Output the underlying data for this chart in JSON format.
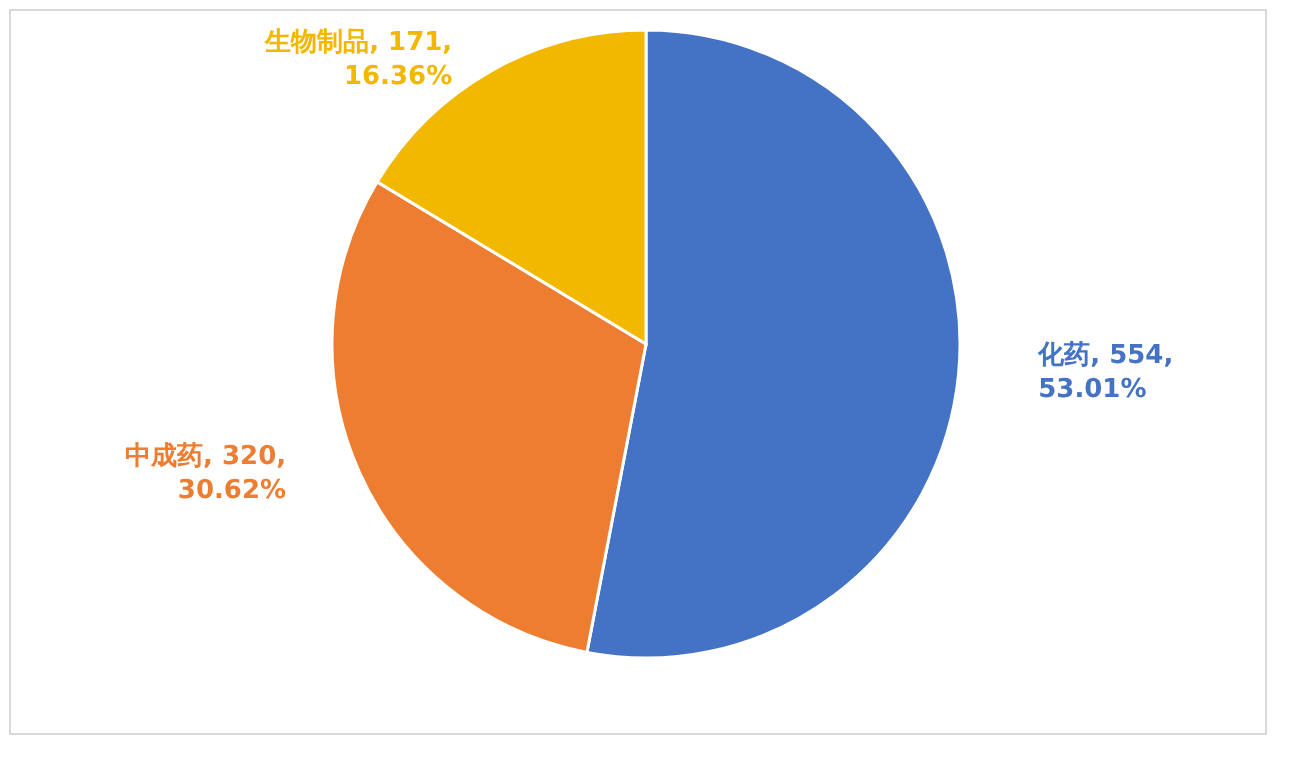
{
  "chart_data": {
    "type": "pie",
    "categories": [
      "化药",
      "中成药",
      "生物制品"
    ],
    "values": [
      554,
      320,
      171
    ],
    "colors": [
      "#4472c4",
      "#ed7d31",
      "#f2b800"
    ],
    "value_labels": [
      "554, 53.01%",
      "320, 30.62%",
      "171, 16.36%"
    ]
  }
}
